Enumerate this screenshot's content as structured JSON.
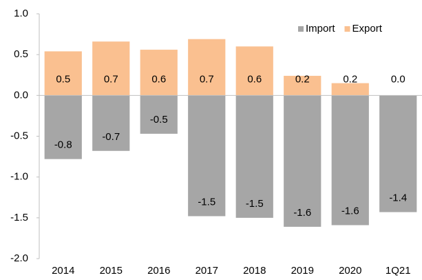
{
  "chart_data": {
    "type": "bar",
    "categories": [
      "2014",
      "2015",
      "2016",
      "2017",
      "2018",
      "2019",
      "2020",
      "1Q21"
    ],
    "series": [
      {
        "name": "Import",
        "color": "#a6a6a6",
        "values": [
          -0.78,
          -0.68,
          -0.47,
          -1.48,
          -1.5,
          -1.61,
          -1.59,
          -1.43
        ],
        "value_labels": [
          "-0.8",
          "-0.7",
          "-0.5",
          "-1.5",
          "-1.5",
          "-1.6",
          "-1.6",
          "-1.4"
        ]
      },
      {
        "name": "Export",
        "color": "#fac090",
        "values": [
          0.54,
          0.66,
          0.56,
          0.69,
          0.6,
          0.24,
          0.15,
          0
        ],
        "value_labels": [
          "0.5",
          "0.7",
          "0.6",
          "0.7",
          "0.6",
          "0.2",
          "0.2",
          "0.0"
        ]
      }
    ],
    "ylim": [
      -2,
      1
    ],
    "yticks": [
      {
        "value": 1,
        "label": "1.0"
      },
      0.5,
      {
        "value": 0,
        "label": "0.0"
      },
      -0.5,
      {
        "value": -1,
        "label": "-1.0"
      },
      -1.5,
      {
        "value": -2,
        "label": "-2.0"
      }
    ],
    "legend": "top-right",
    "grid": false
  }
}
